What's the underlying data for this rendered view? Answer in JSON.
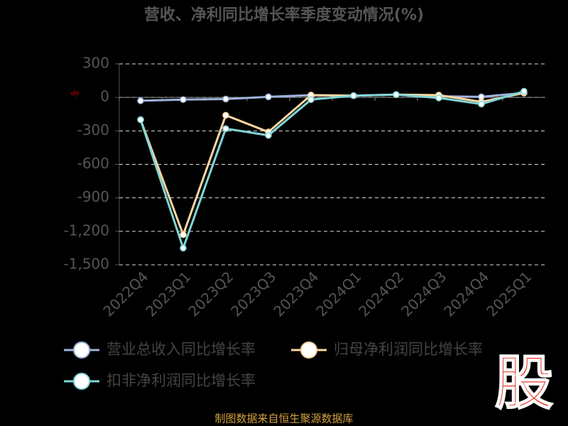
{
  "chart_data": {
    "type": "line",
    "title": "营收、净利同比增长率季度变动情况(%)",
    "y_unit": "%",
    "categories": [
      "2022Q4",
      "2023Q1",
      "2023Q2",
      "2023Q3",
      "2023Q4",
      "2024Q1",
      "2024Q2",
      "2024Q3",
      "2024Q4",
      "2025Q1"
    ],
    "series": [
      {
        "name": "营业总收入同比增长率",
        "color": "#9fb3dc",
        "values": [
          -30,
          -20,
          -15,
          5,
          20,
          15,
          25,
          10,
          5,
          40
        ]
      },
      {
        "name": "归母净利润同比增长率",
        "color": "#ffd6a0",
        "values": [
          -200,
          -1230,
          -160,
          -310,
          20,
          15,
          25,
          20,
          -40,
          40
        ]
      },
      {
        "name": "扣非净利润同比增长率",
        "color": "#7fd6d8",
        "values": [
          -200,
          -1350,
          -280,
          -340,
          -20,
          15,
          25,
          -5,
          -60,
          55
        ]
      }
    ],
    "ylim": [
      -1500,
      300
    ],
    "yticks": [
      300,
      0,
      -300,
      -600,
      -900,
      {
        "value": -1200,
        "label": "-1,200"
      },
      {
        "value": -1500,
        "label": "-1,500"
      }
    ],
    "grid": true,
    "source": "制图数据来自恒生聚源数据库",
    "logo": "股"
  }
}
